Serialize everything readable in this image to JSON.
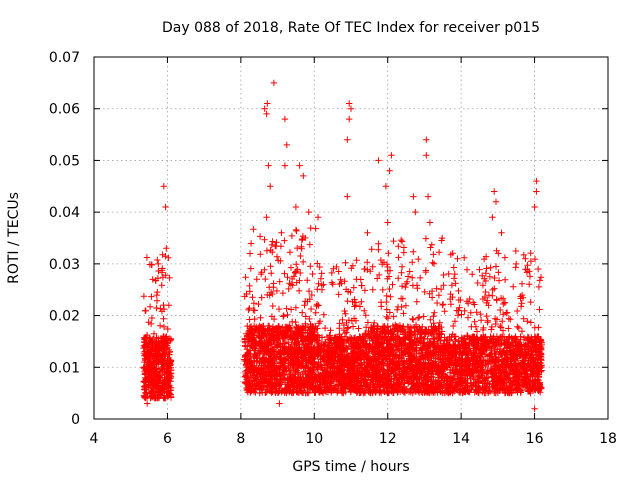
{
  "chart_data": {
    "type": "scatter",
    "title": "Day 088 of 2018, Rate Of TEC Index for receiver p015",
    "xlabel": "GPS time / hours",
    "ylabel": "ROTI / TECUs",
    "xlim": [
      4,
      18
    ],
    "ylim": [
      0,
      0.07
    ],
    "x_ticks": [
      4,
      6,
      8,
      10,
      12,
      14,
      16,
      18
    ],
    "x_tick_labels": [
      "4",
      "6",
      "8",
      "10",
      "12",
      "14",
      "16",
      "18"
    ],
    "y_ticks": [
      0,
      0.01,
      0.02,
      0.03,
      0.04,
      0.05,
      0.06,
      0.07
    ],
    "y_tick_labels": [
      "0",
      "0.01",
      "0.02",
      "0.03",
      "0.04",
      "0.05",
      "0.06",
      "0.07"
    ],
    "grid": true,
    "marker": "+",
    "color": "#ff0000",
    "series": [
      {
        "name": "ROTI",
        "segments": [
          {
            "x_start": 5.35,
            "x_end": 6.1,
            "typical_low": 0.004,
            "typical_high": 0.016,
            "spread": 0.028,
            "count": 520
          },
          {
            "x_start": 8.1,
            "x_end": 10.05,
            "typical_low": 0.005,
            "typical_high": 0.018,
            "spread": 0.032,
            "count": 1300
          },
          {
            "x_start": 10.05,
            "x_end": 11.4,
            "typical_low": 0.005,
            "typical_high": 0.016,
            "spread": 0.026,
            "count": 800
          },
          {
            "x_start": 11.4,
            "x_end": 13.5,
            "typical_low": 0.005,
            "typical_high": 0.018,
            "spread": 0.03,
            "count": 1300
          },
          {
            "x_start": 13.5,
            "x_end": 16.2,
            "typical_low": 0.005,
            "typical_high": 0.016,
            "spread": 0.028,
            "count": 1500
          }
        ],
        "peaks": [
          {
            "x": 5.9,
            "y": 0.045
          },
          {
            "x": 5.95,
            "y": 0.041
          },
          {
            "x": 5.97,
            "y": 0.033
          },
          {
            "x": 5.75,
            "y": 0.03
          },
          {
            "x": 5.6,
            "y": 0.027
          },
          {
            "x": 8.25,
            "y": 0.032
          },
          {
            "x": 8.65,
            "y": 0.06
          },
          {
            "x": 8.72,
            "y": 0.061
          },
          {
            "x": 8.7,
            "y": 0.059
          },
          {
            "x": 8.9,
            "y": 0.065
          },
          {
            "x": 8.75,
            "y": 0.049
          },
          {
            "x": 8.8,
            "y": 0.045
          },
          {
            "x": 8.7,
            "y": 0.039
          },
          {
            "x": 9.2,
            "y": 0.058
          },
          {
            "x": 9.25,
            "y": 0.053
          },
          {
            "x": 9.2,
            "y": 0.049
          },
          {
            "x": 9.6,
            "y": 0.049
          },
          {
            "x": 9.7,
            "y": 0.047
          },
          {
            "x": 9.5,
            "y": 0.041
          },
          {
            "x": 9.85,
            "y": 0.04
          },
          {
            "x": 10.1,
            "y": 0.039
          },
          {
            "x": 10.95,
            "y": 0.061
          },
          {
            "x": 11.0,
            "y": 0.06
          },
          {
            "x": 10.95,
            "y": 0.058
          },
          {
            "x": 10.9,
            "y": 0.054
          },
          {
            "x": 10.9,
            "y": 0.043
          },
          {
            "x": 11.45,
            "y": 0.036
          },
          {
            "x": 11.75,
            "y": 0.05
          },
          {
            "x": 12.1,
            "y": 0.051
          },
          {
            "x": 12.05,
            "y": 0.048
          },
          {
            "x": 11.95,
            "y": 0.045
          },
          {
            "x": 12.0,
            "y": 0.038
          },
          {
            "x": 12.7,
            "y": 0.043
          },
          {
            "x": 12.75,
            "y": 0.04
          },
          {
            "x": 13.05,
            "y": 0.054
          },
          {
            "x": 13.05,
            "y": 0.051
          },
          {
            "x": 13.1,
            "y": 0.043
          },
          {
            "x": 13.15,
            "y": 0.038
          },
          {
            "x": 13.9,
            "y": 0.031
          },
          {
            "x": 14.3,
            "y": 0.028
          },
          {
            "x": 14.9,
            "y": 0.044
          },
          {
            "x": 14.95,
            "y": 0.042
          },
          {
            "x": 14.85,
            "y": 0.039
          },
          {
            "x": 15.1,
            "y": 0.036
          },
          {
            "x": 15.5,
            "y": 0.03
          },
          {
            "x": 15.75,
            "y": 0.031
          },
          {
            "x": 16.05,
            "y": 0.046
          },
          {
            "x": 16.05,
            "y": 0.044
          },
          {
            "x": 16.0,
            "y": 0.041
          },
          {
            "x": 16.1,
            "y": 0.029
          },
          {
            "x": 5.45,
            "y": 0.003
          },
          {
            "x": 9.05,
            "y": 0.003
          },
          {
            "x": 16.0,
            "y": 0.002
          }
        ]
      }
    ]
  }
}
